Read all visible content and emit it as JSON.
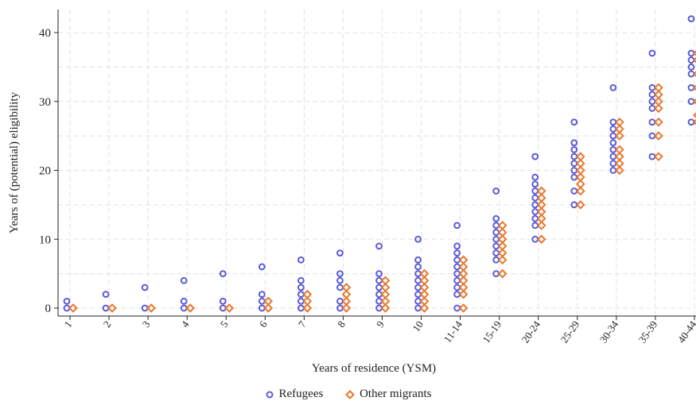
{
  "chart_data": {
    "type": "scatter",
    "xlabel": "Years of residence (YSM)",
    "ylabel": "Years of (potential) eligibility",
    "categories": [
      "1",
      "2",
      "3",
      "4",
      "5",
      "6",
      "7",
      "8",
      "9",
      "10",
      "11-14",
      "15-19",
      "20-24",
      "25-29",
      "30-34",
      "35-39",
      "40-44"
    ],
    "ylim": [
      0,
      43
    ],
    "yticks": [
      0,
      10,
      20,
      30,
      40
    ],
    "grid": true,
    "legend_position": "bottom",
    "series": [
      {
        "name": "Refugees",
        "color": "#5b5bd6",
        "marker": "circle",
        "points": [
          {
            "x": "1",
            "ys": [
              0,
              1
            ]
          },
          {
            "x": "2",
            "ys": [
              0,
              2
            ]
          },
          {
            "x": "3",
            "ys": [
              0,
              3
            ]
          },
          {
            "x": "4",
            "ys": [
              0,
              1,
              4
            ]
          },
          {
            "x": "5",
            "ys": [
              0,
              1,
              5
            ]
          },
          {
            "x": "6",
            "ys": [
              0,
              1,
              2,
              6
            ]
          },
          {
            "x": "7",
            "ys": [
              0,
              1,
              2,
              3,
              4,
              7
            ]
          },
          {
            "x": "8",
            "ys": [
              0,
              1,
              3,
              4,
              5,
              8
            ]
          },
          {
            "x": "9",
            "ys": [
              0,
              1,
              2,
              3,
              4,
              5,
              9
            ]
          },
          {
            "x": "10",
            "ys": [
              0,
              1,
              2,
              3,
              4,
              5,
              6,
              7,
              10
            ]
          },
          {
            "x": "11-14",
            "ys": [
              0,
              2,
              3,
              4,
              5,
              6,
              7,
              8,
              9,
              12
            ]
          },
          {
            "x": "15-19",
            "ys": [
              5,
              7,
              8,
              9,
              10,
              11,
              12,
              13,
              17
            ]
          },
          {
            "x": "20-24",
            "ys": [
              10,
              12,
              13,
              14,
              15,
              16,
              17,
              18,
              19,
              22
            ]
          },
          {
            "x": "25-29",
            "ys": [
              15,
              17,
              19,
              20,
              21,
              22,
              23,
              24,
              27
            ]
          },
          {
            "x": "30-34",
            "ys": [
              20,
              21,
              22,
              23,
              24,
              25,
              26,
              27,
              32
            ]
          },
          {
            "x": "35-39",
            "ys": [
              22,
              25,
              27,
              29,
              30,
              31,
              32,
              37
            ]
          },
          {
            "x": "40-44",
            "ys": [
              27,
              30,
              32,
              34,
              35,
              36,
              37,
              42
            ]
          }
        ]
      },
      {
        "name": "Other migrants",
        "color": "#e8782d",
        "marker": "diamond",
        "points": [
          {
            "x": "1",
            "ys": [
              0
            ]
          },
          {
            "x": "2",
            "ys": [
              0
            ]
          },
          {
            "x": "3",
            "ys": [
              0
            ]
          },
          {
            "x": "4",
            "ys": [
              0
            ]
          },
          {
            "x": "5",
            "ys": [
              0
            ]
          },
          {
            "x": "6",
            "ys": [
              0,
              1
            ]
          },
          {
            "x": "7",
            "ys": [
              0,
              1,
              2
            ]
          },
          {
            "x": "8",
            "ys": [
              0,
              1,
              2,
              3
            ]
          },
          {
            "x": "9",
            "ys": [
              0,
              1,
              2,
              3,
              4
            ]
          },
          {
            "x": "10",
            "ys": [
              0,
              1,
              2,
              3,
              4,
              5
            ]
          },
          {
            "x": "11-14",
            "ys": [
              0,
              2,
              3,
              4,
              5,
              6,
              7
            ]
          },
          {
            "x": "15-19",
            "ys": [
              5,
              7,
              8,
              9,
              10,
              11,
              12
            ]
          },
          {
            "x": "20-24",
            "ys": [
              10,
              12,
              13,
              14,
              15,
              16,
              17
            ]
          },
          {
            "x": "25-29",
            "ys": [
              15,
              17,
              18,
              19,
              20,
              21,
              22
            ]
          },
          {
            "x": "30-34",
            "ys": [
              20,
              21,
              22,
              23,
              25,
              26,
              27
            ]
          },
          {
            "x": "35-39",
            "ys": [
              22,
              25,
              27,
              29,
              30,
              31,
              32
            ]
          },
          {
            "x": "40-44",
            "ys": [
              27,
              28,
              30,
              32,
              34,
              36,
              37
            ]
          }
        ]
      }
    ]
  }
}
